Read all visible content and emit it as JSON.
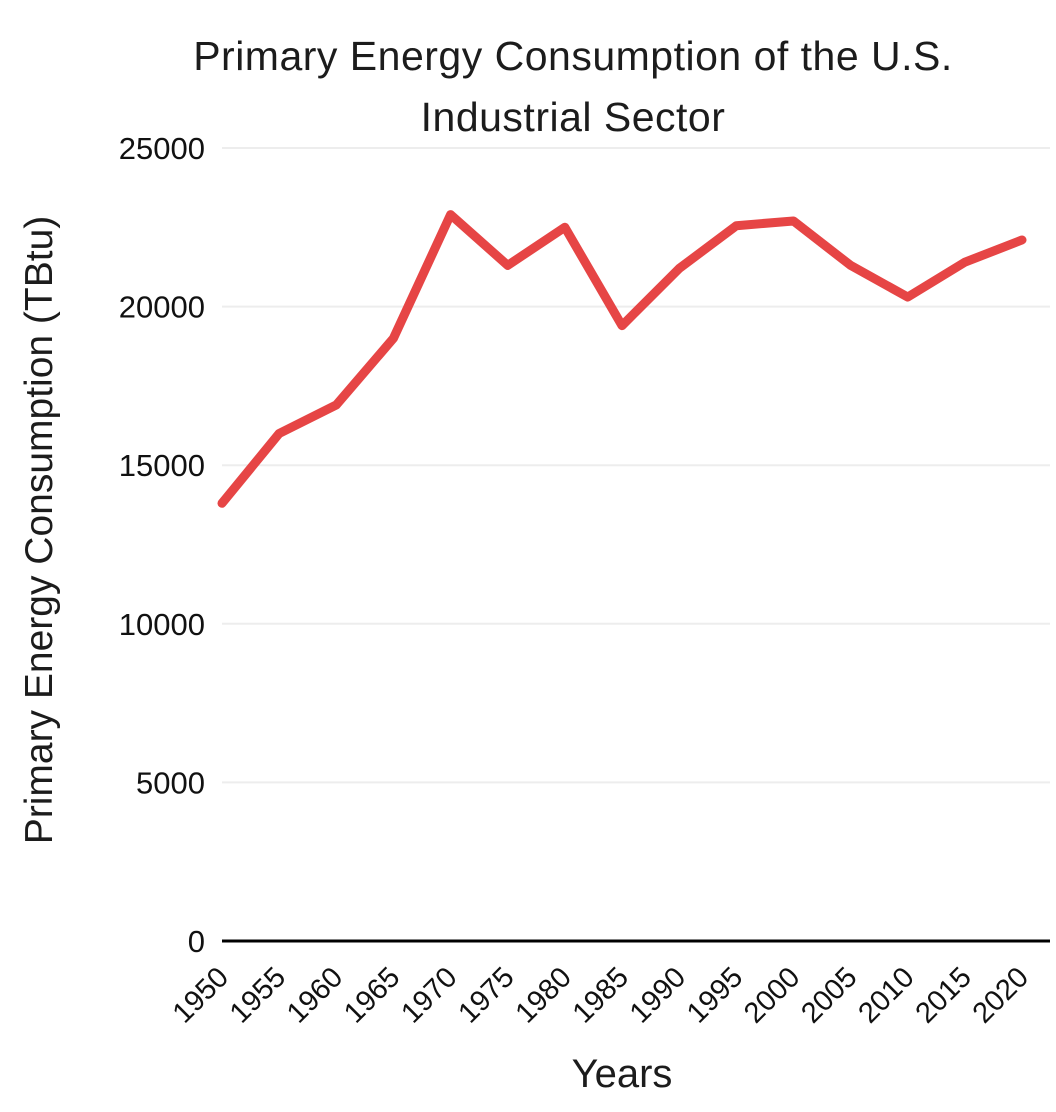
{
  "title": {
    "line1": "Primary Energy Consumption of the U.S.",
    "line2": "Industrial Sector"
  },
  "chart_data": {
    "type": "line",
    "title": "Primary Energy Consumption of the U.S. Industrial Sector",
    "xlabel": "Years",
    "ylabel": "Primary Energy Consumption (TBtu)",
    "x": [
      1950,
      1955,
      1960,
      1965,
      1970,
      1975,
      1980,
      1985,
      1990,
      1995,
      2000,
      2005,
      2010,
      2015,
      2020
    ],
    "values": [
      13800,
      16000,
      16900,
      19000,
      22900,
      21300,
      22500,
      19400,
      21200,
      22550,
      22700,
      21300,
      20300,
      21400,
      22100
    ],
    "ylim": [
      0,
      25000
    ],
    "yticks": [
      0,
      5000,
      10000,
      15000,
      20000,
      25000
    ],
    "grid": true,
    "legend_position": "none",
    "line_color": "#e64545",
    "grid_color": "#ededed",
    "axis_color": "#000000",
    "text_color": "#111111"
  }
}
